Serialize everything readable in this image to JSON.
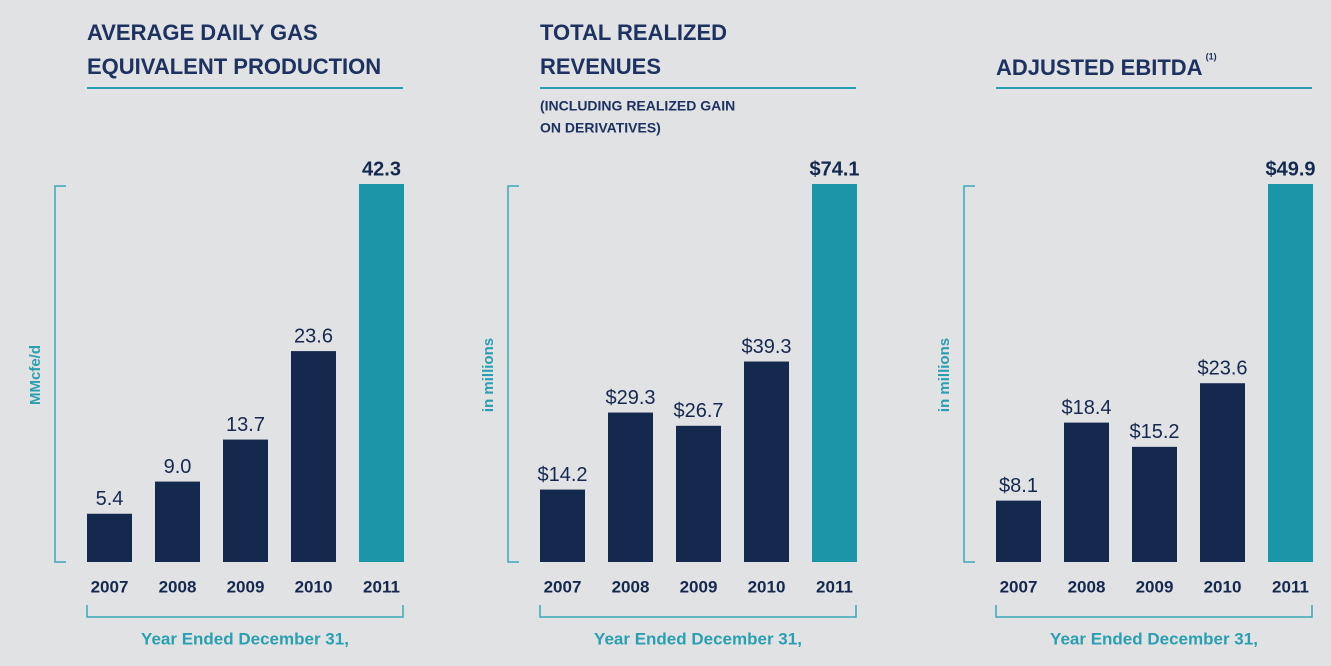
{
  "chart_data": [
    {
      "type": "bar",
      "title": [
        "AVERAGE DAILY GAS",
        "EQUIVALENT PRODUCTION"
      ],
      "y_label": "MMcfe/d",
      "x_label": "Year Ended December 31,",
      "categories": [
        "2007",
        "2008",
        "2009",
        "2010",
        "2011"
      ],
      "values": [
        5.4,
        9.0,
        13.7,
        23.6,
        42.3
      ],
      "value_labels": [
        "5.4",
        "9.0",
        "13.7",
        "23.6",
        "42.3"
      ],
      "colors": [
        "#15294f",
        "#15294f",
        "#15294f",
        "#15294f",
        "#1b96a9"
      ],
      "ylim": [
        0,
        42.3
      ]
    },
    {
      "type": "bar",
      "title": [
        "TOTAL REALIZED",
        "REVENUES"
      ],
      "subtitle": [
        "(INCLUDING REALIZED GAIN",
        "ON DERIVATIVES)"
      ],
      "y_label": "in millions",
      "x_label": "Year Ended December 31,",
      "categories": [
        "2007",
        "2008",
        "2009",
        "2010",
        "2011"
      ],
      "values": [
        14.2,
        29.3,
        26.7,
        39.3,
        74.1
      ],
      "value_labels": [
        "$14.2",
        "$29.3",
        "$26.7",
        "$39.3",
        "$74.1"
      ],
      "colors": [
        "#15294f",
        "#15294f",
        "#15294f",
        "#15294f",
        "#1b96a9"
      ],
      "ylim": [
        0,
        74.1
      ]
    },
    {
      "type": "bar",
      "title": [
        "ADJUSTED EBITDA"
      ],
      "title_note": "(1)",
      "y_label": "in millions",
      "x_label": "Year Ended December 31,",
      "categories": [
        "2007",
        "2008",
        "2009",
        "2010",
        "2011"
      ],
      "values": [
        8.1,
        18.4,
        15.2,
        23.6,
        49.9
      ],
      "value_labels": [
        "$8.1",
        "$18.4",
        "$15.2",
        "$23.6",
        "$49.9"
      ],
      "colors": [
        "#15294f",
        "#15294f",
        "#15294f",
        "#15294f",
        "#1b96a9"
      ],
      "ylim": [
        0,
        49.9
      ]
    }
  ]
}
